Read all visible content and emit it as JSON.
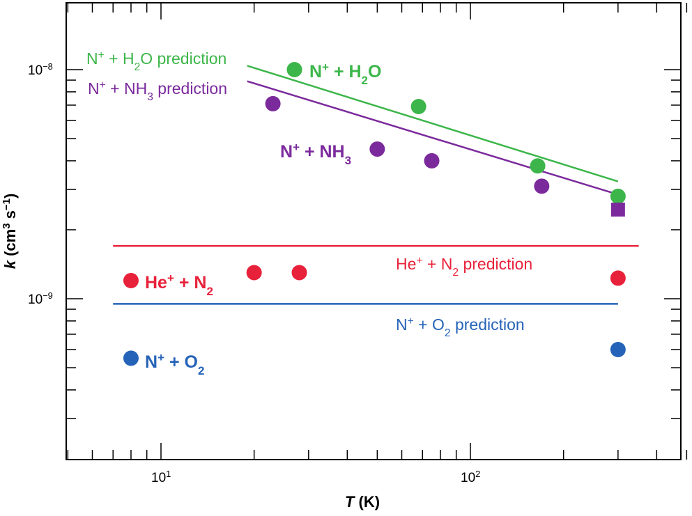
{
  "chart_data": {
    "type": "scatter",
    "xscale": "log",
    "yscale": "log",
    "xlabel": {
      "main": "T",
      "unit": "(K)"
    },
    "ylabel": {
      "main": "k",
      "unit_base": "(cm",
      "unit_exp": "3",
      "unit_mid": " s",
      "unit_exp2": "−1",
      "unit_end": ")"
    },
    "xlim": [
      5,
      500
    ],
    "ylim": [
      2e-10,
      2e-08
    ],
    "x_ticklabels": [
      {
        "value": 10,
        "base": "10",
        "exp": "1"
      },
      {
        "value": 100,
        "base": "10",
        "exp": "2"
      }
    ],
    "y_ticklabels": [
      {
        "value": 1e-08,
        "base": "10",
        "exp": "−8"
      },
      {
        "value": 1e-09,
        "base": "10",
        "exp": "−9"
      }
    ],
    "series": [
      {
        "name": "N+ + H2O",
        "color": "#3cb64a",
        "marker": "circle",
        "points": [
          [
            27,
            1e-08
          ],
          [
            68,
            6.9e-09
          ],
          [
            165,
            3.8e-09
          ],
          [
            300,
            2.8e-09
          ]
        ],
        "label": {
          "parts": [
            [
              "N",
              ""
            ],
            [
              "+",
              "sup"
            ],
            [
              " + H",
              ""
            ],
            [
              "2",
              "sub"
            ],
            [
              "O",
              ""
            ]
          ]
        }
      },
      {
        "name": "N+ + NH3",
        "color": "#7b2a9c",
        "marker": "circle",
        "points": [
          [
            23,
            7.1e-09
          ],
          [
            50,
            4.5e-09
          ],
          [
            75,
            4e-09
          ],
          [
            170,
            3.1e-09
          ]
        ],
        "extra_points": [
          {
            "x": 300,
            "y": 2.45e-09,
            "marker": "square"
          }
        ],
        "label": {
          "parts": [
            [
              "N",
              ""
            ],
            [
              "+",
              "sup"
            ],
            [
              " + NH",
              ""
            ],
            [
              "3",
              "sub"
            ]
          ]
        }
      },
      {
        "name": "He+ + N2",
        "color": "#e8213a",
        "marker": "circle",
        "points": [
          [
            8,
            1.2e-09
          ],
          [
            20,
            1.3e-09
          ],
          [
            28,
            1.3e-09
          ],
          [
            300,
            1.23e-09
          ]
        ],
        "label": {
          "parts": [
            [
              "He",
              ""
            ],
            [
              "+",
              "sup"
            ],
            [
              " + N",
              ""
            ],
            [
              "2",
              "sub"
            ]
          ]
        }
      },
      {
        "name": "N+ + O2",
        "color": "#2563b8",
        "marker": "circle",
        "points": [
          [
            8,
            5.5e-10
          ],
          [
            300,
            6e-10
          ]
        ],
        "label": {
          "parts": [
            [
              "N",
              ""
            ],
            [
              "+",
              "sup"
            ],
            [
              " + O",
              ""
            ],
            [
              "2",
              "sub"
            ]
          ]
        }
      }
    ],
    "predictions": [
      {
        "name": "N+ + H2O prediction",
        "color": "#3cb64a",
        "x": [
          19,
          300
        ],
        "y": [
          1.04e-08,
          3.25e-09
        ],
        "label": {
          "parts": [
            [
              "N",
              ""
            ],
            [
              "+",
              "sup"
            ],
            [
              " + H",
              ""
            ],
            [
              "2",
              "sub"
            ],
            [
              "O prediction",
              ""
            ]
          ]
        }
      },
      {
        "name": "N+ + NH3 prediction",
        "color": "#7b2a9c",
        "x": [
          19,
          300
        ],
        "y": [
          8.9e-09,
          2.85e-09
        ],
        "label": {
          "parts": [
            [
              "N",
              ""
            ],
            [
              "+",
              "sup"
            ],
            [
              " + NH",
              ""
            ],
            [
              "3",
              "sub"
            ],
            [
              " prediction",
              ""
            ]
          ]
        }
      },
      {
        "name": "He+ + N2 prediction",
        "color": "#e8213a",
        "x": [
          7,
          350
        ],
        "y": [
          1.7e-09,
          1.7e-09
        ],
        "label": {
          "parts": [
            [
              "He",
              ""
            ],
            [
              "+",
              "sup"
            ],
            [
              " + N",
              ""
            ],
            [
              "2",
              "sub"
            ],
            [
              " prediction",
              ""
            ]
          ]
        }
      },
      {
        "name": "N+ + O2 prediction",
        "color": "#2563b8",
        "x": [
          7,
          300
        ],
        "y": [
          9.5e-10,
          9.5e-10
        ],
        "label": {
          "parts": [
            [
              "N",
              ""
            ],
            [
              "+",
              "sup"
            ],
            [
              " + O",
              ""
            ],
            [
              "2",
              "sub"
            ],
            [
              " prediction",
              ""
            ]
          ]
        }
      }
    ]
  }
}
